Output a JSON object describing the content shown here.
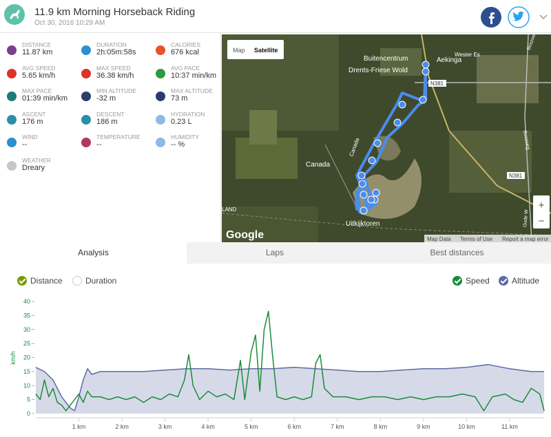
{
  "header": {
    "title": "11.9 km Morning Horseback Riding",
    "date": "Oct 30, 2016 10:29 AM"
  },
  "stats": [
    {
      "label": "Distance",
      "value": "11.87 km"
    },
    {
      "label": "Duration",
      "value": "2h:05m:58s"
    },
    {
      "label": "Calories",
      "value": "676 kcal"
    },
    {
      "label": "Avg Speed",
      "value": "5.65 km/h"
    },
    {
      "label": "Max Speed",
      "value": "36.38 km/h"
    },
    {
      "label": "Avg Pace",
      "value": "10:37 min/km"
    },
    {
      "label": "Max Pace",
      "value": "01:39 min/km"
    },
    {
      "label": "Min Altitude",
      "value": "-32 m"
    },
    {
      "label": "Max Altitude",
      "value": "73 m"
    },
    {
      "label": "Ascent",
      "value": "176 m"
    },
    {
      "label": "Descent",
      "value": "186 m"
    },
    {
      "label": "Hydration",
      "value": "0.23 L"
    },
    {
      "label": "Wind",
      "value": "--"
    },
    {
      "label": "Temperature",
      "value": "--"
    },
    {
      "label": "Humidity",
      "value": "-- %"
    },
    {
      "label": "Weather",
      "value": "Dreary"
    }
  ],
  "map": {
    "buttons": [
      "Map",
      "Satellite"
    ],
    "labels": [
      "Buitencentrum",
      "Drents-Friese Wold",
      "Aekinga",
      "Wester Es",
      "N381",
      "N381",
      "Canada",
      "Canada",
      "Uitkijktoren",
      "LAND",
      "Boszweg",
      "Boszweg",
      "Oude W"
    ],
    "logo": "Google",
    "footer": [
      "Map Data",
      "Terms of Use",
      "Report a map error"
    ],
    "zoom": [
      "+",
      "−"
    ]
  },
  "tabs": [
    "Analysis",
    "Laps",
    "Best distances"
  ],
  "legend": {
    "left": [
      "Distance",
      "Duration"
    ],
    "right": [
      "Speed",
      "Altitude"
    ]
  },
  "chart_data": {
    "type": "line",
    "y_label": "km/h",
    "grid": false,
    "xlim": [
      0,
      11.8
    ],
    "ylim": [
      0,
      40
    ],
    "yticks": [
      0,
      5,
      10,
      15,
      20,
      25,
      30,
      35,
      40
    ],
    "xticks": [
      {
        "value": 1,
        "label": "1 km"
      },
      {
        "value": 2,
        "label": "2 km"
      },
      {
        "value": 3,
        "label": "3 km"
      },
      {
        "value": 4,
        "label": "4 km"
      },
      {
        "value": 5,
        "label": "5 km"
      },
      {
        "value": 6,
        "label": "6 km"
      },
      {
        "value": 7,
        "label": "7 km"
      },
      {
        "value": 8,
        "label": "8 km"
      },
      {
        "value": 9,
        "label": "9 km"
      },
      {
        "value": 10,
        "label": "10 km"
      },
      {
        "value": 11,
        "label": "11 km"
      }
    ],
    "series": [
      {
        "name": "Speed",
        "color": "#1a8b3a",
        "x": [
          0,
          0.1,
          0.2,
          0.3,
          0.4,
          0.5,
          0.6,
          0.7,
          0.8,
          0.9,
          1.0,
          1.1,
          1.2,
          1.3,
          1.5,
          1.7,
          1.9,
          2.1,
          2.3,
          2.5,
          2.7,
          2.9,
          3.1,
          3.3,
          3.45,
          3.55,
          3.65,
          3.8,
          4.0,
          4.2,
          4.4,
          4.6,
          4.75,
          4.85,
          5.0,
          5.1,
          5.2,
          5.3,
          5.4,
          5.5,
          5.6,
          5.8,
          6.0,
          6.2,
          6.4,
          6.5,
          6.6,
          6.7,
          6.9,
          7.2,
          7.5,
          7.8,
          8.1,
          8.4,
          8.7,
          9.0,
          9.3,
          9.6,
          9.9,
          10.2,
          10.4,
          10.6,
          10.9,
          11.1,
          11.3,
          11.5,
          11.6,
          11.7,
          11.8
        ],
        "values": [
          7,
          5,
          12,
          6,
          9,
          4,
          3,
          1,
          3,
          5,
          7,
          4,
          8,
          6,
          6,
          5,
          6,
          5,
          6,
          4,
          6,
          5,
          7,
          6,
          12,
          21,
          10,
          5,
          8,
          6,
          7,
          5,
          19,
          5,
          22,
          28,
          8,
          30,
          36.5,
          20,
          6,
          5,
          6,
          5,
          6,
          18,
          21,
          9,
          6,
          6,
          5,
          6,
          6,
          5,
          6,
          5,
          6,
          6,
          7,
          6,
          1,
          6,
          7,
          5,
          4,
          9,
          8,
          7,
          1
        ]
      },
      {
        "name": "Altitude",
        "color": "#5c6aa6",
        "fill": "#d6dae8",
        "x": [
          0,
          0.2,
          0.4,
          0.6,
          0.8,
          0.9,
          1.0,
          1.1,
          1.2,
          1.3,
          1.5,
          2.0,
          2.5,
          3.0,
          3.5,
          4.0,
          4.5,
          5.0,
          5.5,
          6.0,
          6.5,
          7.0,
          7.5,
          8.0,
          8.5,
          9.0,
          9.5,
          10.0,
          10.5,
          11.0,
          11.5,
          11.8
        ],
        "values": [
          16.5,
          15,
          12,
          6,
          2,
          1,
          6,
          12,
          16,
          14,
          15,
          15,
          15,
          15.5,
          16,
          16,
          15.5,
          16,
          16,
          16.5,
          16,
          15.5,
          15,
          15,
          15.5,
          16,
          16,
          16.5,
          17.5,
          16,
          15,
          15
        ]
      }
    ]
  }
}
